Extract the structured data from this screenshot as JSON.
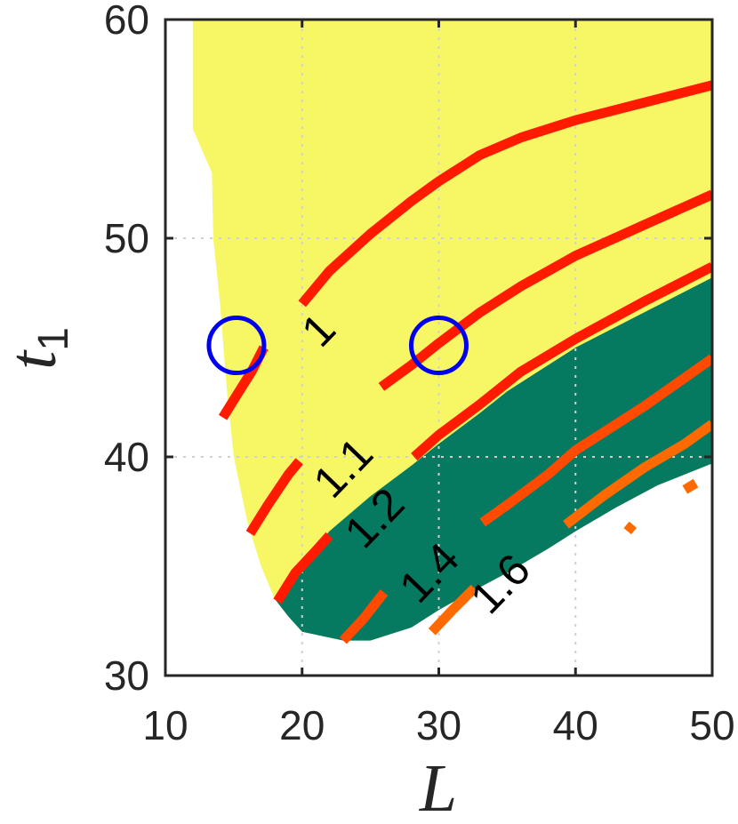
{
  "chart_data": {
    "type": "contour",
    "title": "",
    "xlabel": "L",
    "ylabel": "t",
    "ylabel_subscript": "1",
    "xlim": [
      10,
      50
    ],
    "ylim": [
      30,
      60
    ],
    "xticks": [
      10,
      20,
      30,
      40,
      50
    ],
    "yticks": [
      30,
      40,
      50,
      60
    ],
    "x_tick_labels": [
      "10",
      "20",
      "30",
      "40",
      "50"
    ],
    "y_tick_labels": [
      "30",
      "40",
      "50",
      "60"
    ],
    "grid": true,
    "colors": {
      "feasible_region": "#f7f765",
      "highlighted_region": "#057a60",
      "contour_low": "#ff1a00",
      "contour_high": "#ff6a00",
      "markers": "#0000ee"
    },
    "regions": [
      {
        "fill": "feasible_region",
        "boundary": [
          [
            12,
            60
          ],
          [
            12,
            55
          ],
          [
            13.4,
            53
          ],
          [
            13.5,
            50
          ],
          [
            14,
            47
          ],
          [
            14.5,
            43
          ],
          [
            15,
            40
          ],
          [
            16,
            37
          ],
          [
            17,
            35
          ],
          [
            18,
            33.5
          ],
          [
            19,
            32.7
          ],
          [
            20,
            32
          ],
          [
            23,
            31.6
          ],
          [
            25,
            31.6
          ],
          [
            28,
            32.2
          ],
          [
            30,
            33
          ],
          [
            32,
            33.7
          ],
          [
            35,
            34.7
          ],
          [
            38,
            35.8
          ],
          [
            40,
            36.6
          ],
          [
            43,
            37.7
          ],
          [
            46,
            38.7
          ],
          [
            50,
            39.7
          ],
          [
            50,
            60
          ]
        ]
      },
      {
        "fill": "highlighted_region",
        "boundary": [
          [
            18,
            33.5
          ],
          [
            20,
            35.2
          ],
          [
            22,
            36.6
          ],
          [
            25,
            38.2
          ],
          [
            28,
            39.6
          ],
          [
            30,
            40.6
          ],
          [
            33,
            42
          ],
          [
            35,
            43
          ],
          [
            40,
            45
          ],
          [
            45,
            46.6
          ],
          [
            50,
            48.2
          ],
          [
            50,
            39.7
          ],
          [
            46,
            38.7
          ],
          [
            43,
            37.7
          ],
          [
            40,
            36.6
          ],
          [
            38,
            35.8
          ],
          [
            35,
            34.7
          ],
          [
            32,
            33.7
          ],
          [
            30,
            33
          ],
          [
            28,
            32.2
          ],
          [
            25,
            31.6
          ],
          [
            23,
            31.6
          ],
          [
            20,
            32
          ],
          [
            19,
            32.7
          ]
        ]
      }
    ],
    "contours": [
      {
        "level": 1.0,
        "label": "1",
        "label_at": [
          21.2,
          45.8
        ],
        "label_angle": -46,
        "segments": [
          [
            [
              14.2,
              41.8
            ],
            [
              15.2,
              42.8
            ],
            [
              16.3,
              43.9
            ],
            [
              17.2,
              45
            ]
          ],
          [
            [
              20,
              47
            ],
            [
              22,
              48.5
            ],
            [
              25,
              50.2
            ],
            [
              28,
              51.7
            ],
            [
              30,
              52.6
            ],
            [
              33,
              53.8
            ],
            [
              36,
              54.6
            ],
            [
              40,
              55.4
            ],
            [
              45,
              56.2
            ],
            [
              50,
              57
            ]
          ]
        ]
      },
      {
        "level": 1.1,
        "label": "1.1",
        "label_at": [
          23,
          39.5
        ],
        "label_angle": -46,
        "segments": [
          [
            [
              16.2,
              36.5
            ],
            [
              17.5,
              37.8
            ],
            [
              19,
              39.2
            ],
            [
              19.8,
              39.8
            ]
          ],
          [
            [
              25.8,
              43.2
            ],
            [
              28,
              44.2
            ],
            [
              30,
              45.2
            ],
            [
              33,
              46.6
            ],
            [
              36,
              47.8
            ],
            [
              40,
              49.2
            ],
            [
              45,
              50.6
            ],
            [
              50,
              52
            ]
          ]
        ]
      },
      {
        "level": 1.2,
        "label": "1.2",
        "label_at": [
          25.3,
          37.2
        ],
        "label_angle": -46,
        "segments": [
          [
            [
              18.2,
              33.4
            ],
            [
              19.5,
              34.7
            ],
            [
              21,
              35.7
            ],
            [
              22,
              36.4
            ]
          ],
          [
            [
              28.2,
              40
            ],
            [
              30,
              41
            ],
            [
              33,
              42.4
            ],
            [
              36,
              43.9
            ],
            [
              40,
              45.4
            ],
            [
              45,
              47.1
            ],
            [
              50,
              48.7
            ]
          ]
        ]
      },
      {
        "level": 1.4,
        "label": "1.4",
        "label_at": [
          29.3,
          34.7
        ],
        "label_angle": -46,
        "segments": [
          [
            [
              23,
              31.6
            ],
            [
              24.5,
              32.6
            ],
            [
              26,
              33.8
            ]
          ],
          [
            [
              33.2,
              37
            ],
            [
              35,
              37.8
            ],
            [
              38,
              39.2
            ],
            [
              40,
              40.3
            ],
            [
              45,
              42.3
            ],
            [
              50,
              44.5
            ]
          ]
        ]
      },
      {
        "level": 1.6,
        "label": "1.6",
        "label_at": [
          34.5,
          34.2
        ],
        "label_angle": -46,
        "segments": [
          [
            [
              29.5,
              32
            ],
            [
              31,
              33
            ],
            [
              32.6,
              34
            ]
          ],
          [
            [
              39.3,
              36.9
            ],
            [
              42,
              38.2
            ],
            [
              45,
              39.5
            ],
            [
              48,
              40.6
            ],
            [
              50,
              41.5
            ]
          ]
        ]
      },
      {
        "level": 1.8,
        "label": "",
        "label_at": null,
        "label_angle": 0,
        "segments": [
          [
            [
              43.8,
              36.6
            ],
            [
              44.2,
              36.9
            ]
          ],
          [
            [
              48,
              38.5
            ],
            [
              48.8,
              38.8
            ]
          ]
        ]
      }
    ],
    "markers": [
      {
        "shape": "circle",
        "x": 15.2,
        "y": 45.1
      },
      {
        "shape": "circle",
        "x": 30,
        "y": 45.1
      }
    ]
  }
}
